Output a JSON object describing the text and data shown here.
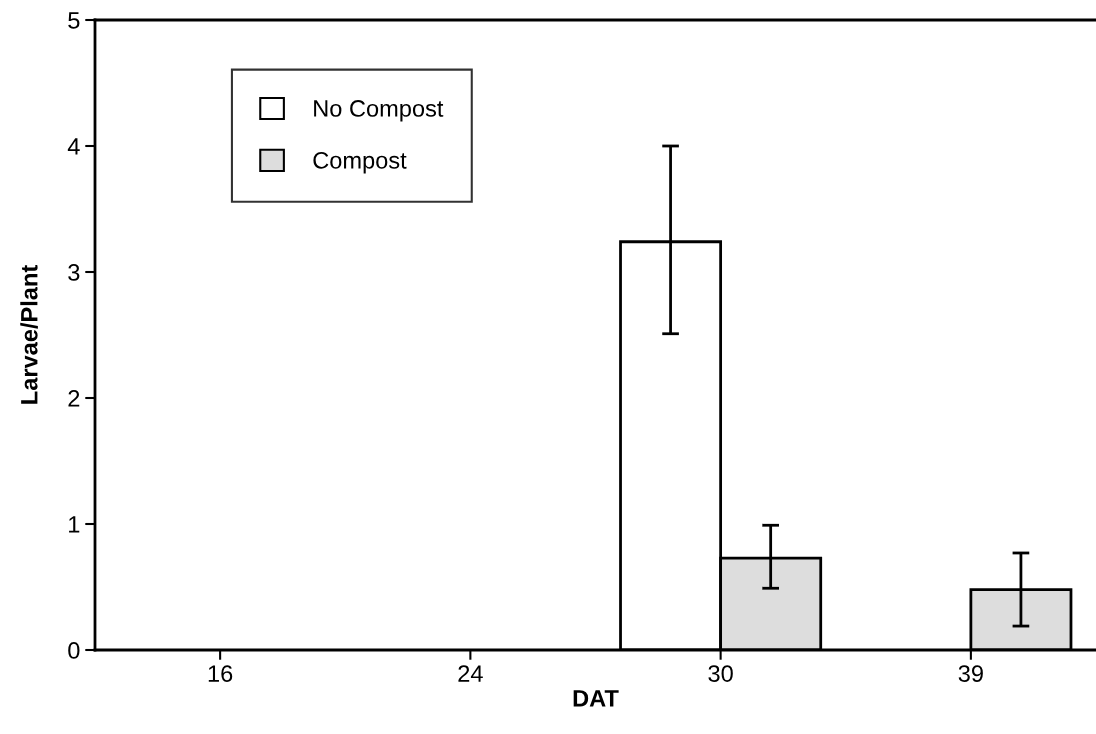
{
  "chart_data": {
    "type": "bar",
    "xlabel": "DAT",
    "ylabel": "Larvae/Plant",
    "categories": [
      "16",
      "24",
      "30",
      "39"
    ],
    "series": [
      {
        "name": "No Compost",
        "color": "#ffffff",
        "values": [
          null,
          null,
          3.24,
          null
        ],
        "errors": [
          null,
          null,
          [
            2.51,
            4.0
          ],
          null
        ]
      },
      {
        "name": "Compost",
        "color": "#dddddd",
        "values": [
          null,
          null,
          0.73,
          0.48
        ],
        "errors": [
          null,
          null,
          [
            0.49,
            0.99
          ],
          [
            0.19,
            0.77
          ]
        ]
      }
    ],
    "ylim": [
      0,
      5
    ],
    "yticks": [
      0,
      1,
      2,
      3,
      4,
      5
    ],
    "grid": false,
    "legend": "top left"
  }
}
